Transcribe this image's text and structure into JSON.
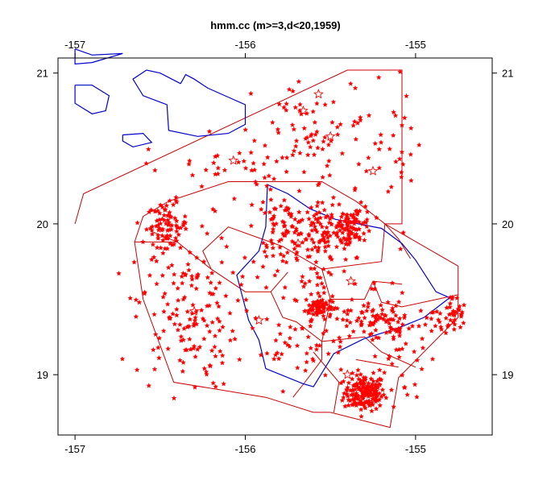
{
  "chart_data": {
    "type": "scatter",
    "title": "hmm.cc (m>=3,d<20,1959)",
    "xlabel": "",
    "ylabel": "",
    "xlim": [
      -157.1,
      -154.55
    ],
    "ylim": [
      18.6,
      21.1
    ],
    "x_ticks": [
      -157,
      -156,
      -155
    ],
    "x_tick_labels": [
      "-157",
      "-156",
      "-155"
    ],
    "y_ticks": [
      19,
      20,
      21
    ],
    "y_tick_labels": [
      "19",
      "20",
      "21"
    ],
    "grid": false,
    "legend": "none",
    "colors": {
      "events": "#ff0000",
      "zones": "#cc0000",
      "coast": "#0000cc",
      "frame": "#000000"
    },
    "marker": "star",
    "coastlines": [
      {
        "name": "Hawaii",
        "points": [
          [
            -155.87,
            20.26
          ],
          [
            -155.75,
            20.2
          ],
          [
            -155.62,
            20.1
          ],
          [
            -155.47,
            20.03
          ],
          [
            -155.2,
            19.97
          ],
          [
            -155.08,
            19.87
          ],
          [
            -155.0,
            19.76
          ],
          [
            -154.88,
            19.55
          ],
          [
            -154.8,
            19.51
          ],
          [
            -154.95,
            19.38
          ],
          [
            -155.1,
            19.31
          ],
          [
            -155.3,
            19.24
          ],
          [
            -155.48,
            19.14
          ],
          [
            -155.6,
            18.92
          ],
          [
            -155.66,
            18.94
          ],
          [
            -155.88,
            19.04
          ],
          [
            -155.92,
            19.23
          ],
          [
            -155.98,
            19.36
          ],
          [
            -156.05,
            19.66
          ],
          [
            -155.92,
            19.82
          ],
          [
            -155.88,
            19.98
          ],
          [
            -155.87,
            20.26
          ]
        ]
      },
      {
        "name": "Maui",
        "points": [
          [
            -156.38,
            20.93
          ],
          [
            -156.35,
            20.99
          ],
          [
            -156.3,
            20.96
          ],
          [
            -156.22,
            20.9
          ],
          [
            -156.08,
            20.83
          ],
          [
            -156.0,
            20.79
          ],
          [
            -156.0,
            20.66
          ],
          [
            -156.1,
            20.6
          ],
          [
            -156.28,
            20.58
          ],
          [
            -156.45,
            20.62
          ],
          [
            -156.46,
            20.79
          ],
          [
            -156.6,
            20.85
          ],
          [
            -156.66,
            20.96
          ],
          [
            -156.58,
            21.02
          ],
          [
            -156.5,
            21.0
          ],
          [
            -156.38,
            20.93
          ]
        ]
      },
      {
        "name": "Molokai",
        "points": [
          [
            -157.0,
            21.16
          ],
          [
            -156.9,
            21.12
          ],
          [
            -156.72,
            21.13
          ],
          [
            -156.9,
            21.07
          ],
          [
            -157.0,
            21.06
          ],
          [
            -157.0,
            21.16
          ]
        ]
      },
      {
        "name": "Lanai",
        "points": [
          [
            -157.0,
            20.92
          ],
          [
            -156.9,
            20.92
          ],
          [
            -156.8,
            20.85
          ],
          [
            -156.82,
            20.75
          ],
          [
            -156.9,
            20.73
          ],
          [
            -157.0,
            20.8
          ],
          [
            -157.0,
            20.92
          ]
        ]
      },
      {
        "name": "Kahoolawe",
        "points": [
          [
            -156.72,
            20.59
          ],
          [
            -156.6,
            20.6
          ],
          [
            -156.55,
            20.54
          ],
          [
            -156.66,
            20.51
          ],
          [
            -156.72,
            20.55
          ],
          [
            -156.72,
            20.59
          ]
        ]
      }
    ],
    "zones": [
      [
        [
          -157.0,
          20.0
        ],
        [
          -156.95,
          20.2
        ],
        [
          -155.4,
          21.02
        ],
        [
          -155.08,
          21.02
        ],
        [
          -155.08,
          20.0
        ],
        [
          -155.18,
          20.0
        ],
        [
          -154.75,
          19.72
        ],
        [
          -154.75,
          19.38
        ],
        [
          -155.1,
          18.98
        ],
        [
          -155.15,
          18.65
        ],
        [
          -155.5,
          18.75
        ],
        [
          -155.6,
          18.75
        ],
        [
          -155.88,
          18.85
        ],
        [
          -156.42,
          18.95
        ],
        [
          -156.6,
          19.5
        ],
        [
          -156.65,
          19.88
        ],
        [
          -156.6,
          20.05
        ],
        [
          -156.45,
          20.15
        ],
        [
          -156.1,
          20.28
        ],
        [
          -155.55,
          20.28
        ],
        [
          -155.35,
          20.15
        ],
        [
          -155.18,
          20.0
        ],
        [
          -155.1,
          19.9
        ],
        [
          -155.03,
          19.77
        ]
      ],
      [
        [
          -156.65,
          19.88
        ],
        [
          -156.4,
          19.88
        ],
        [
          -156.2,
          19.7
        ],
        [
          -156.0,
          19.55
        ],
        [
          -155.85,
          19.55
        ],
        [
          -155.78,
          19.38
        ],
        [
          -155.7,
          19.35
        ],
        [
          -155.55,
          19.22
        ],
        [
          -155.55,
          19.1
        ],
        [
          -155.65,
          18.95
        ],
        [
          -155.72,
          18.85
        ]
      ],
      [
        [
          -156.4,
          19.88
        ],
        [
          -156.55,
          19.95
        ]
      ],
      [
        [
          -156.2,
          19.7
        ],
        [
          -156.25,
          19.82
        ],
        [
          -156.1,
          19.98
        ],
        [
          -155.78,
          19.85
        ],
        [
          -155.55,
          19.7
        ],
        [
          -155.2,
          19.75
        ],
        [
          -155.18,
          20.0
        ]
      ],
      [
        [
          -155.85,
          19.55
        ],
        [
          -155.75,
          19.68
        ]
      ],
      [
        [
          -155.55,
          19.7
        ],
        [
          -155.5,
          19.5
        ],
        [
          -155.3,
          19.5
        ],
        [
          -155.25,
          19.62
        ],
        [
          -155.08,
          19.6
        ]
      ],
      [
        [
          -155.5,
          19.5
        ],
        [
          -155.55,
          19.22
        ]
      ],
      [
        [
          -155.25,
          19.62
        ],
        [
          -155.2,
          19.48
        ],
        [
          -155.08,
          19.45
        ],
        [
          -154.75,
          19.53
        ]
      ],
      [
        [
          -155.55,
          19.22
        ],
        [
          -155.3,
          19.25
        ],
        [
          -155.2,
          19.15
        ],
        [
          -155.0,
          19.05
        ]
      ],
      [
        [
          -155.6,
          19.15
        ],
        [
          -155.45,
          18.95
        ],
        [
          -155.48,
          18.75
        ]
      ],
      [
        [
          -155.35,
          19.1
        ],
        [
          -155.1,
          19.05
        ]
      ]
    ],
    "events_large": [
      [
        -155.57,
        20.86
      ],
      [
        -155.66,
        20.75
      ],
      [
        -156.07,
        20.42
      ],
      [
        -155.5,
        20.58
      ],
      [
        -155.25,
        20.35
      ],
      [
        -155.69,
        19.87
      ],
      [
        -155.38,
        19.62
      ],
      [
        -155.62,
        19.42
      ],
      [
        -155.92,
        19.36
      ],
      [
        -155.4,
        19.0
      ],
      [
        -156.3,
        19.42
      ]
    ],
    "clusters": [
      {
        "cx": -155.3,
        "cy": 18.88,
        "sx": 0.06,
        "sy": 0.06,
        "n": 170
      },
      {
        "cx": -155.57,
        "cy": 19.45,
        "sx": 0.04,
        "sy": 0.04,
        "n": 70
      },
      {
        "cx": -156.46,
        "cy": 19.99,
        "sx": 0.06,
        "sy": 0.07,
        "n": 80
      },
      {
        "cx": -155.52,
        "cy": 19.93,
        "sx": 0.12,
        "sy": 0.1,
        "n": 120
      },
      {
        "cx": -155.35,
        "cy": 20.0,
        "sx": 0.05,
        "sy": 0.06,
        "n": 60
      },
      {
        "cx": -155.78,
        "cy": 19.98,
        "sx": 0.08,
        "sy": 0.08,
        "n": 60
      },
      {
        "cx": -155.2,
        "cy": 19.35,
        "sx": 0.2,
        "sy": 0.08,
        "n": 110
      },
      {
        "cx": -154.78,
        "cy": 19.4,
        "sx": 0.04,
        "sy": 0.06,
        "n": 35
      },
      {
        "cx": -156.35,
        "cy": 19.4,
        "sx": 0.15,
        "sy": 0.25,
        "n": 150
      },
      {
        "cx": -155.55,
        "cy": 20.6,
        "sx": 0.2,
        "sy": 0.18,
        "n": 70
      },
      {
        "cx": -156.0,
        "cy": 20.35,
        "sx": 0.3,
        "sy": 0.12,
        "n": 55
      },
      {
        "cx": -155.1,
        "cy": 20.55,
        "sx": 0.08,
        "sy": 0.3,
        "n": 25
      },
      {
        "cx": -155.7,
        "cy": 19.15,
        "sx": 0.15,
        "sy": 0.1,
        "n": 40
      },
      {
        "cx": -155.6,
        "cy": 19.65,
        "sx": 0.2,
        "sy": 0.1,
        "n": 50
      },
      {
        "cx": -155.1,
        "cy": 19.05,
        "sx": 0.12,
        "sy": 0.12,
        "n": 30
      }
    ]
  }
}
